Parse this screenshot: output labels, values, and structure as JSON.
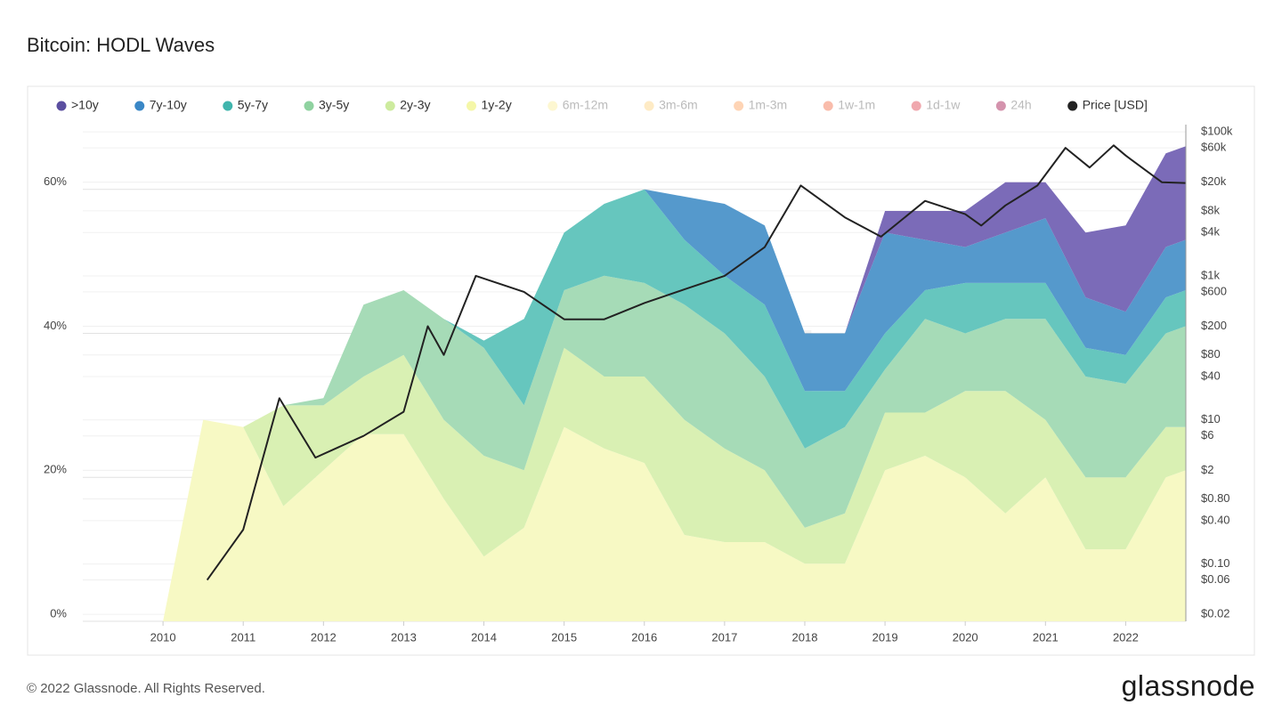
{
  "chart_data": {
    "type": "area",
    "stacked": true,
    "title": "Bitcoin: HODL Waves",
    "watermark": "glassnode",
    "footer": "© 2022 Glassnode. All Rights Reserved.",
    "brand": "glassnode",
    "x": [
      2010,
      2010.5,
      2011,
      2011.5,
      2012,
      2012.5,
      2013,
      2013.5,
      2014,
      2014.5,
      2015,
      2015.5,
      2016,
      2016.5,
      2017,
      2017.5,
      2018,
      2018.5,
      2019,
      2019.5,
      2020,
      2020.5,
      2021,
      2021.5,
      2022,
      2022.5,
      2022.75
    ],
    "xlim": [
      2009,
      2022.75
    ],
    "xticks": [
      2010,
      2011,
      2012,
      2013,
      2014,
      2015,
      2016,
      2017,
      2018,
      2019,
      2020,
      2021,
      2022
    ],
    "ylim": [
      0,
      69
    ],
    "yticks": [
      {
        "value": 0,
        "label": "0%"
      },
      {
        "value": 20,
        "label": "20%"
      },
      {
        "value": 40,
        "label": "40%"
      },
      {
        "value": 60,
        "label": "60%"
      }
    ],
    "y2lim": [
      0.016,
      126000
    ],
    "y2log": true,
    "y2ticks": [
      {
        "value": 100000,
        "label": "$100k"
      },
      {
        "value": 60000,
        "label": "$60k"
      },
      {
        "value": 20000,
        "label": "$20k"
      },
      {
        "value": 8000,
        "label": "$8k"
      },
      {
        "value": 4000,
        "label": "$4k"
      },
      {
        "value": 1000,
        "label": "$1k"
      },
      {
        "value": 600,
        "label": "$600"
      },
      {
        "value": 200,
        "label": "$200"
      },
      {
        "value": 80,
        "label": "$80"
      },
      {
        "value": 40,
        "label": "$40"
      },
      {
        "value": 10,
        "label": "$10"
      },
      {
        "value": 6,
        "label": "$6"
      },
      {
        "value": 2,
        "label": "$2"
      },
      {
        "value": 0.8,
        "label": "$0.80"
      },
      {
        "value": 0.4,
        "label": "$0.40"
      },
      {
        "value": 0.1,
        "label": "$0.10"
      },
      {
        "value": 0.06,
        "label": "$0.06"
      },
      {
        "value": 0.02,
        "label": "$0.02"
      }
    ],
    "grid": true,
    "legend": "top",
    "series": [
      {
        "name": ">10y",
        "color": "#5b4fa0",
        "fill": "#7b6bb8",
        "visible": true,
        "values": [
          0,
          0,
          0,
          0,
          0,
          0,
          0,
          0,
          0,
          0,
          0,
          0,
          0,
          0,
          0,
          0,
          0,
          0,
          3,
          4,
          5,
          7,
          5,
          9,
          12,
          13,
          13
        ]
      },
      {
        "name": "7y-10y",
        "color": "#3a87c6",
        "fill": "#5599cc",
        "visible": true,
        "values": [
          0,
          0,
          0,
          0,
          0,
          0,
          0,
          0,
          0,
          0,
          0,
          0,
          0,
          6,
          10,
          11,
          8,
          8,
          14,
          7,
          5,
          7,
          9,
          7,
          6,
          7,
          7
        ]
      },
      {
        "name": "5y-7y",
        "color": "#40b5ad",
        "fill": "#66c6be",
        "visible": true,
        "values": [
          0,
          0,
          0,
          0,
          0,
          0,
          0,
          0,
          1,
          12,
          8,
          10,
          13,
          9,
          8,
          10,
          8,
          5,
          5,
          4,
          7,
          5,
          5,
          4,
          4,
          5,
          5
        ]
      },
      {
        "name": "3y-5y",
        "color": "#8fd2a0",
        "fill": "#a6dbb7",
        "visible": true,
        "values": [
          0,
          0,
          0,
          0,
          1,
          10,
          9,
          14,
          15,
          9,
          8,
          14,
          13,
          16,
          16,
          13,
          11,
          12,
          6,
          13,
          8,
          10,
          14,
          14,
          13,
          13,
          14
        ]
      },
      {
        "name": "2y-3y",
        "color": "#cdeb9e",
        "fill": "#d9f0b3",
        "visible": true,
        "values": [
          0,
          0,
          0,
          14,
          9,
          8,
          11,
          11,
          14,
          8,
          11,
          10,
          12,
          16,
          13,
          10,
          5,
          7,
          8,
          6,
          12,
          17,
          8,
          10,
          10,
          7,
          6
        ]
      },
      {
        "name": "1y-2y",
        "color": "#f5f7a8",
        "fill": "#f7f9c4",
        "visible": true,
        "values": [
          0,
          28,
          27,
          16,
          21,
          26,
          26,
          17,
          9,
          13,
          27,
          24,
          22,
          12,
          11,
          11,
          8,
          8,
          21,
          23,
          20,
          15,
          20,
          10,
          10,
          20,
          21
        ]
      },
      {
        "name": "6m-12m",
        "color": "#fbee9a",
        "visible": false
      },
      {
        "name": "3m-6m",
        "color": "#fdd27e",
        "visible": false
      },
      {
        "name": "1m-3m",
        "color": "#fca05a",
        "visible": false
      },
      {
        "name": "1w-1m",
        "color": "#f26a44",
        "visible": false
      },
      {
        "name": "1d-1w",
        "color": "#dd3d4b",
        "visible": false
      },
      {
        "name": "24h",
        "color": "#a0104a",
        "visible": false
      },
      {
        "name": "Price [USD]",
        "color": "#222222",
        "visible": true,
        "type": "line",
        "axis": "y2",
        "x": [
          2010.55,
          2011.0,
          2011.45,
          2011.9,
          2012.5,
          2013.0,
          2013.3,
          2013.5,
          2013.9,
          2014.5,
          2015.0,
          2015.5,
          2016.0,
          2016.5,
          2017.0,
          2017.5,
          2017.95,
          2018.5,
          2018.95,
          2019.5,
          2020.0,
          2020.2,
          2020.5,
          2020.9,
          2021.25,
          2021.55,
          2021.85,
          2022.0,
          2022.45,
          2022.75
        ],
        "values": [
          0.06,
          0.3,
          20,
          3,
          6,
          13,
          200,
          80,
          1000,
          600,
          250,
          250,
          420,
          650,
          1000,
          2500,
          18000,
          6500,
          3500,
          11000,
          7200,
          5000,
          9500,
          18000,
          60000,
          32000,
          65000,
          47000,
          20000,
          19500
        ]
      }
    ]
  }
}
